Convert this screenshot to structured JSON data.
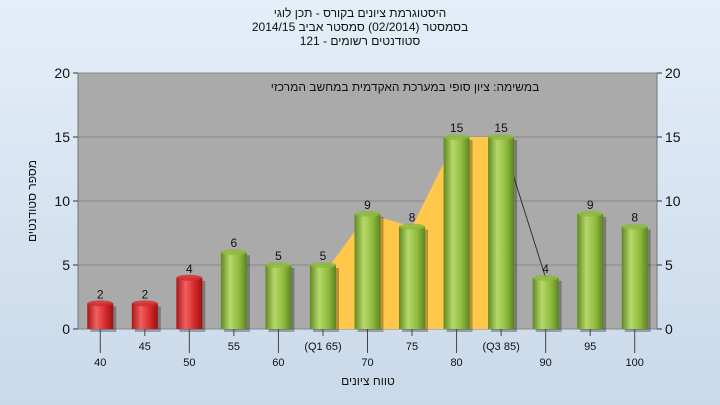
{
  "chart_data": {
    "type": "bar",
    "title_lines": [
      "היסטוגרמת ציונים בקורס - תכן לוגי",
      "בסמסטר  (02/2014)  סמסטר אביב 2014/15",
      "סטודנטים רשומים - 121"
    ],
    "annotation": "במשימה: ציון סופי במערכת האקדמית במחשב המרכזי",
    "ylabel": "מספר סטודנטים",
    "xlabel": "טווח ציונים",
    "ylim": [
      0,
      20
    ],
    "y_ticks": [
      0,
      5,
      10,
      15,
      20
    ],
    "grid": true,
    "categories": [
      "40",
      "45",
      "50",
      "55",
      "60",
      "(Q1 65)",
      "70",
      "75",
      "80",
      "(Q3 85)",
      "90",
      "95",
      "100"
    ],
    "values": [
      2,
      2,
      4,
      6,
      5,
      5,
      9,
      8,
      15,
      15,
      4,
      9,
      8
    ],
    "bar_colors": [
      "#d42a2a",
      "#d42a2a",
      "#d42a2a",
      "#8dba3c",
      "#8dba3c",
      "#8dba3c",
      "#8dba3c",
      "#8dba3c",
      "#8dba3c",
      "#8dba3c",
      "#8dba3c",
      "#8dba3c",
      "#8dba3c"
    ],
    "colors": {
      "plot_background": "#aaaaaa",
      "iqr_area": "#ffc84a",
      "fail_bar": "#d42a2a",
      "pass_bar": "#8dba3c"
    }
  }
}
